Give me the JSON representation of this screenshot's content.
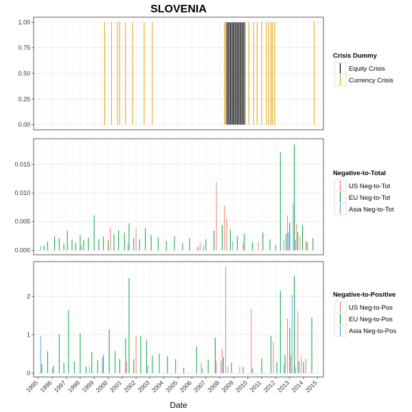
{
  "chart_data": {
    "title": "SLOVENIA",
    "xlabel": "Date",
    "x_ticks": [
      "1995",
      "1996",
      "1997",
      "1998",
      "1999",
      "2000",
      "2001",
      "2002",
      "2003",
      "2004",
      "2005",
      "2006",
      "2007",
      "2008",
      "2009",
      "2010",
      "2011",
      "2012",
      "2013",
      "2014",
      "2015"
    ],
    "xlim": [
      "1994-09",
      "2015-06"
    ],
    "colors": {
      "equity": "#000000",
      "currency": "#E69F00",
      "us": "#F8766D",
      "eu": "#00A23A",
      "asia": "#619CFF"
    },
    "panels": [
      {
        "type": "bar",
        "legend_title": "Crisis Dummy",
        "legend": [
          "Equity Crisis",
          "Currency Crisis"
        ],
        "ylim": [
          -0.05,
          1.05
        ],
        "y_ticks": [
          "0.00",
          "0.25",
          "0.50",
          "0.75",
          "1.00"
        ],
        "series": [
          {
            "name": "Equity Crisis",
            "x": [
              "2008-07",
              "2008-08",
              "2008-09",
              "2008-10",
              "2008-11",
              "2008-12",
              "2009-01",
              "2009-02",
              "2009-03",
              "2009-04",
              "2009-05",
              "2009-06",
              "2009-07",
              "2009-08",
              "2009-09",
              "2009-10"
            ],
            "values": [
              1,
              1,
              1,
              1,
              1,
              1,
              1,
              1,
              1,
              1,
              1,
              1,
              1,
              1,
              1,
              1
            ]
          },
          {
            "name": "Currency Crisis",
            "x": [
              "1999-10",
              "2000-04",
              "2000-09",
              "2000-11",
              "2001-04",
              "2001-10",
              "2002-08",
              "2003-03",
              "2008-05",
              "2008-06",
              "2009-11",
              "2010-02",
              "2010-06",
              "2010-09",
              "2011-01",
              "2011-05",
              "2011-07",
              "2011-09",
              "2011-10",
              "2011-12",
              "2014-10"
            ],
            "values": [
              1,
              1,
              1,
              1,
              1,
              1,
              1,
              1,
              1,
              1,
              1,
              1,
              1,
              1,
              1,
              1,
              1,
              1,
              1,
              1,
              1
            ]
          }
        ]
      },
      {
        "type": "bar",
        "legend_title": "Negative-to-Total",
        "legend": [
          "US Neg-to-Tot",
          "EU Neg-to-Tot",
          "Asia Neg-to-Tot"
        ],
        "ylim": [
          -0.0008,
          0.0195
        ],
        "y_ticks": [
          "0.000",
          "0.005",
          "0.010",
          "0.015"
        ],
        "series": [
          {
            "name": "US Neg-to-Tot",
            "x": [
              "2000-03",
              "2002-01",
              "2006-08",
              "2007-10",
              "2008-05",
              "2008-07",
              "2009-09",
              "2010-10",
              "2012-11",
              "2013-01",
              "2013-07",
              "2013-10",
              "2014-03"
            ],
            "values": [
              0.0039,
              0.0037,
              0.0013,
              0.0119,
              0.0078,
              0.0055,
              0.0012,
              0.0015,
              0.0061,
              0.0048,
              0.0046,
              0.0024,
              0.0017
            ]
          },
          {
            "name": "EU Neg-to-Tot",
            "x": [
              "1995-06",
              "1995-09",
              "1996-03",
              "1996-07",
              "1996-11",
              "1997-02",
              "1997-06",
              "1997-09",
              "1998-01",
              "1998-04",
              "1998-08",
              "1999-01",
              "1999-05",
              "1999-09",
              "2000-01",
              "2000-06",
              "2000-10",
              "2001-03",
              "2001-07",
              "2001-11",
              "2002-04",
              "2002-09",
              "2003-02",
              "2003-08",
              "2004-03",
              "2004-10",
              "2005-05",
              "2005-11",
              "2006-06",
              "2007-01",
              "2007-08",
              "2008-03",
              "2008-10",
              "2009-04",
              "2009-10",
              "2010-05",
              "2011-02",
              "2011-08",
              "2012-01",
              "2012-05",
              "2012-10",
              "2013-01",
              "2013-05",
              "2013-08",
              "2013-12",
              "2014-04",
              "2014-09"
            ],
            "values": [
              0.0008,
              0.0015,
              0.0024,
              0.0021,
              0.0012,
              0.0034,
              0.0019,
              0.0013,
              0.0026,
              0.0018,
              0.0022,
              0.0061,
              0.0019,
              0.0024,
              0.0017,
              0.0028,
              0.0035,
              0.0031,
              0.0047,
              0.0021,
              0.0019,
              0.0038,
              0.0026,
              0.0022,
              0.0016,
              0.0025,
              0.0012,
              0.0021,
              0.0006,
              0.0019,
              0.0034,
              0.0044,
              0.0036,
              0.0024,
              0.0029,
              0.0014,
              0.0031,
              0.0019,
              0.0009,
              0.0172,
              0.0029,
              0.0048,
              0.0185,
              0.0031,
              0.0044,
              0.0014,
              0.0021
            ]
          },
          {
            "name": "Asia Neg-to-Tot",
            "x": [
              "1995-03",
              "1998-02",
              "2001-06",
              "2006-11",
              "2008-12",
              "2012-08",
              "2012-12",
              "2013-04",
              "2013-06"
            ],
            "values": [
              0.0008,
              0.0009,
              0.0011,
              0.0009,
              0.0016,
              0.0018,
              0.0031,
              0.0083,
              0.0018
            ]
          }
        ]
      },
      {
        "type": "bar",
        "legend_title": "Negative-to-Positive",
        "legend": [
          "US Neg-to-Pos",
          "EU Neg-to-Pos",
          "Asia Neg-to-Pos"
        ],
        "ylim": [
          -0.1,
          2.9
        ],
        "y_ticks": [
          "0",
          "1",
          "2"
        ],
        "series": [
          {
            "name": "US Neg-to-Pos",
            "x": [
              "2001-05",
              "2002-01",
              "2006-09",
              "2007-10",
              "2008-03",
              "2008-06",
              "2009-06",
              "2010-04",
              "2011-11",
              "2012-11",
              "2013-02",
              "2013-08",
              "2013-11",
              "2014-03"
            ],
            "values": [
              0.31,
              0.97,
              0.27,
              0.32,
              0.64,
              2.77,
              0.18,
              1.67,
              0.81,
              1.42,
              0.47,
              1.61,
              0.44,
              0.38
            ]
          },
          {
            "name": "EU Neg-to-Pos",
            "x": [
              "1995-04",
              "1995-09",
              "1996-02",
              "1996-07",
              "1996-11",
              "1997-03",
              "1997-08",
              "1998-01",
              "1998-06",
              "1998-11",
              "1999-04",
              "1999-09",
              "2000-02",
              "2000-07",
              "2000-11",
              "2001-04",
              "2001-07",
              "2001-11",
              "2002-05",
              "2002-10",
              "2003-03",
              "2003-09",
              "2004-04",
              "2004-11",
              "2005-06",
              "2006-05",
              "2007-03",
              "2007-09",
              "2008-04",
              "2008-11",
              "2009-09",
              "2010-05",
              "2011-01",
              "2011-09",
              "2012-02",
              "2012-05",
              "2012-09",
              "2013-01",
              "2013-05",
              "2013-09",
              "2014-01",
              "2014-08"
            ],
            "values": [
              0.24,
              0.57,
              0.19,
              1.01,
              0.27,
              1.64,
              0.31,
              1.03,
              0.17,
              0.55,
              0.34,
              0.47,
              1.14,
              0.57,
              0.37,
              0.91,
              2.47,
              0.36,
              0.97,
              0.85,
              0.46,
              0.51,
              0.44,
              0.37,
              0.14,
              0.69,
              0.35,
              0.93,
              0.41,
              0.27,
              0.16,
              0.12,
              0.38,
              0.97,
              0.28,
              2.14,
              0.47,
              1.18,
              2.52,
              0.31,
              0.29,
              1.44
            ]
          },
          {
            "name": "Asia Neg-to-Pos",
            "x": [
              "1995-03",
              "1996-01",
              "1998-09",
              "1999-08",
              "2002-11",
              "2006-10",
              "2008-02",
              "2008-08",
              "2012-08",
              "2013-03",
              "2013-06"
            ],
            "values": [
              0.97,
              0.12,
              0.18,
              0.41,
              0.21,
              0.14,
              0.33,
              0.17,
              0.23,
              2.03,
              0.16
            ]
          }
        ]
      }
    ]
  }
}
